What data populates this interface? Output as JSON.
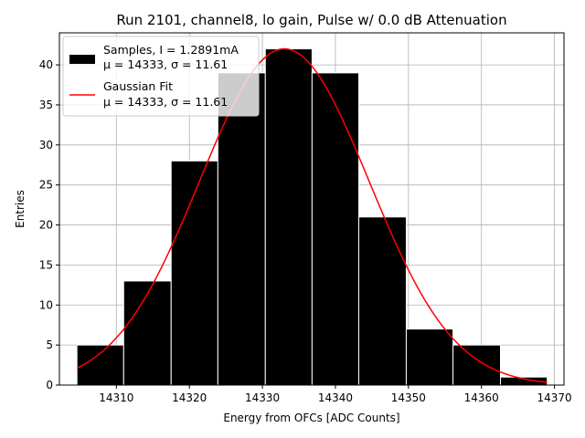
{
  "chart_data": {
    "type": "bar",
    "title": "Run 2101, channel8, lo gain, Pulse w/ 0.0 dB Attenuation",
    "xlabel": "Energy from OFCs [ADC Counts]",
    "ylabel": "Entries",
    "xlim": [
      14302.2,
      14371.3
    ],
    "ylim": [
      0,
      44
    ],
    "xticks": [
      14310,
      14320,
      14330,
      14340,
      14350,
      14360,
      14370
    ],
    "yticks": [
      0,
      5,
      10,
      15,
      20,
      25,
      30,
      35,
      40
    ],
    "grid": true,
    "legend_position": "top-left",
    "histogram": {
      "name": "Samples, I = 1.2891mA",
      "stats": "μ = 14333, σ = 11.61",
      "color": "#000000",
      "edgecolor": "#ffffff",
      "bin_edges": [
        14304.6,
        14311.0,
        14317.5,
        14323.9,
        14330.4,
        14336.8,
        14343.2,
        14349.7,
        14356.1,
        14362.6,
        14369.0
      ],
      "counts": [
        5,
        13,
        28,
        39,
        42,
        39,
        21,
        7,
        5,
        1
      ]
    },
    "fit": {
      "name": "Gaussian Fit",
      "stats": "μ = 14333, σ = 11.61",
      "color": "#ff0000",
      "mu": 14333,
      "sigma": 11.61,
      "amplitude": 42,
      "x_range": [
        14304.6,
        14369.0
      ]
    }
  }
}
